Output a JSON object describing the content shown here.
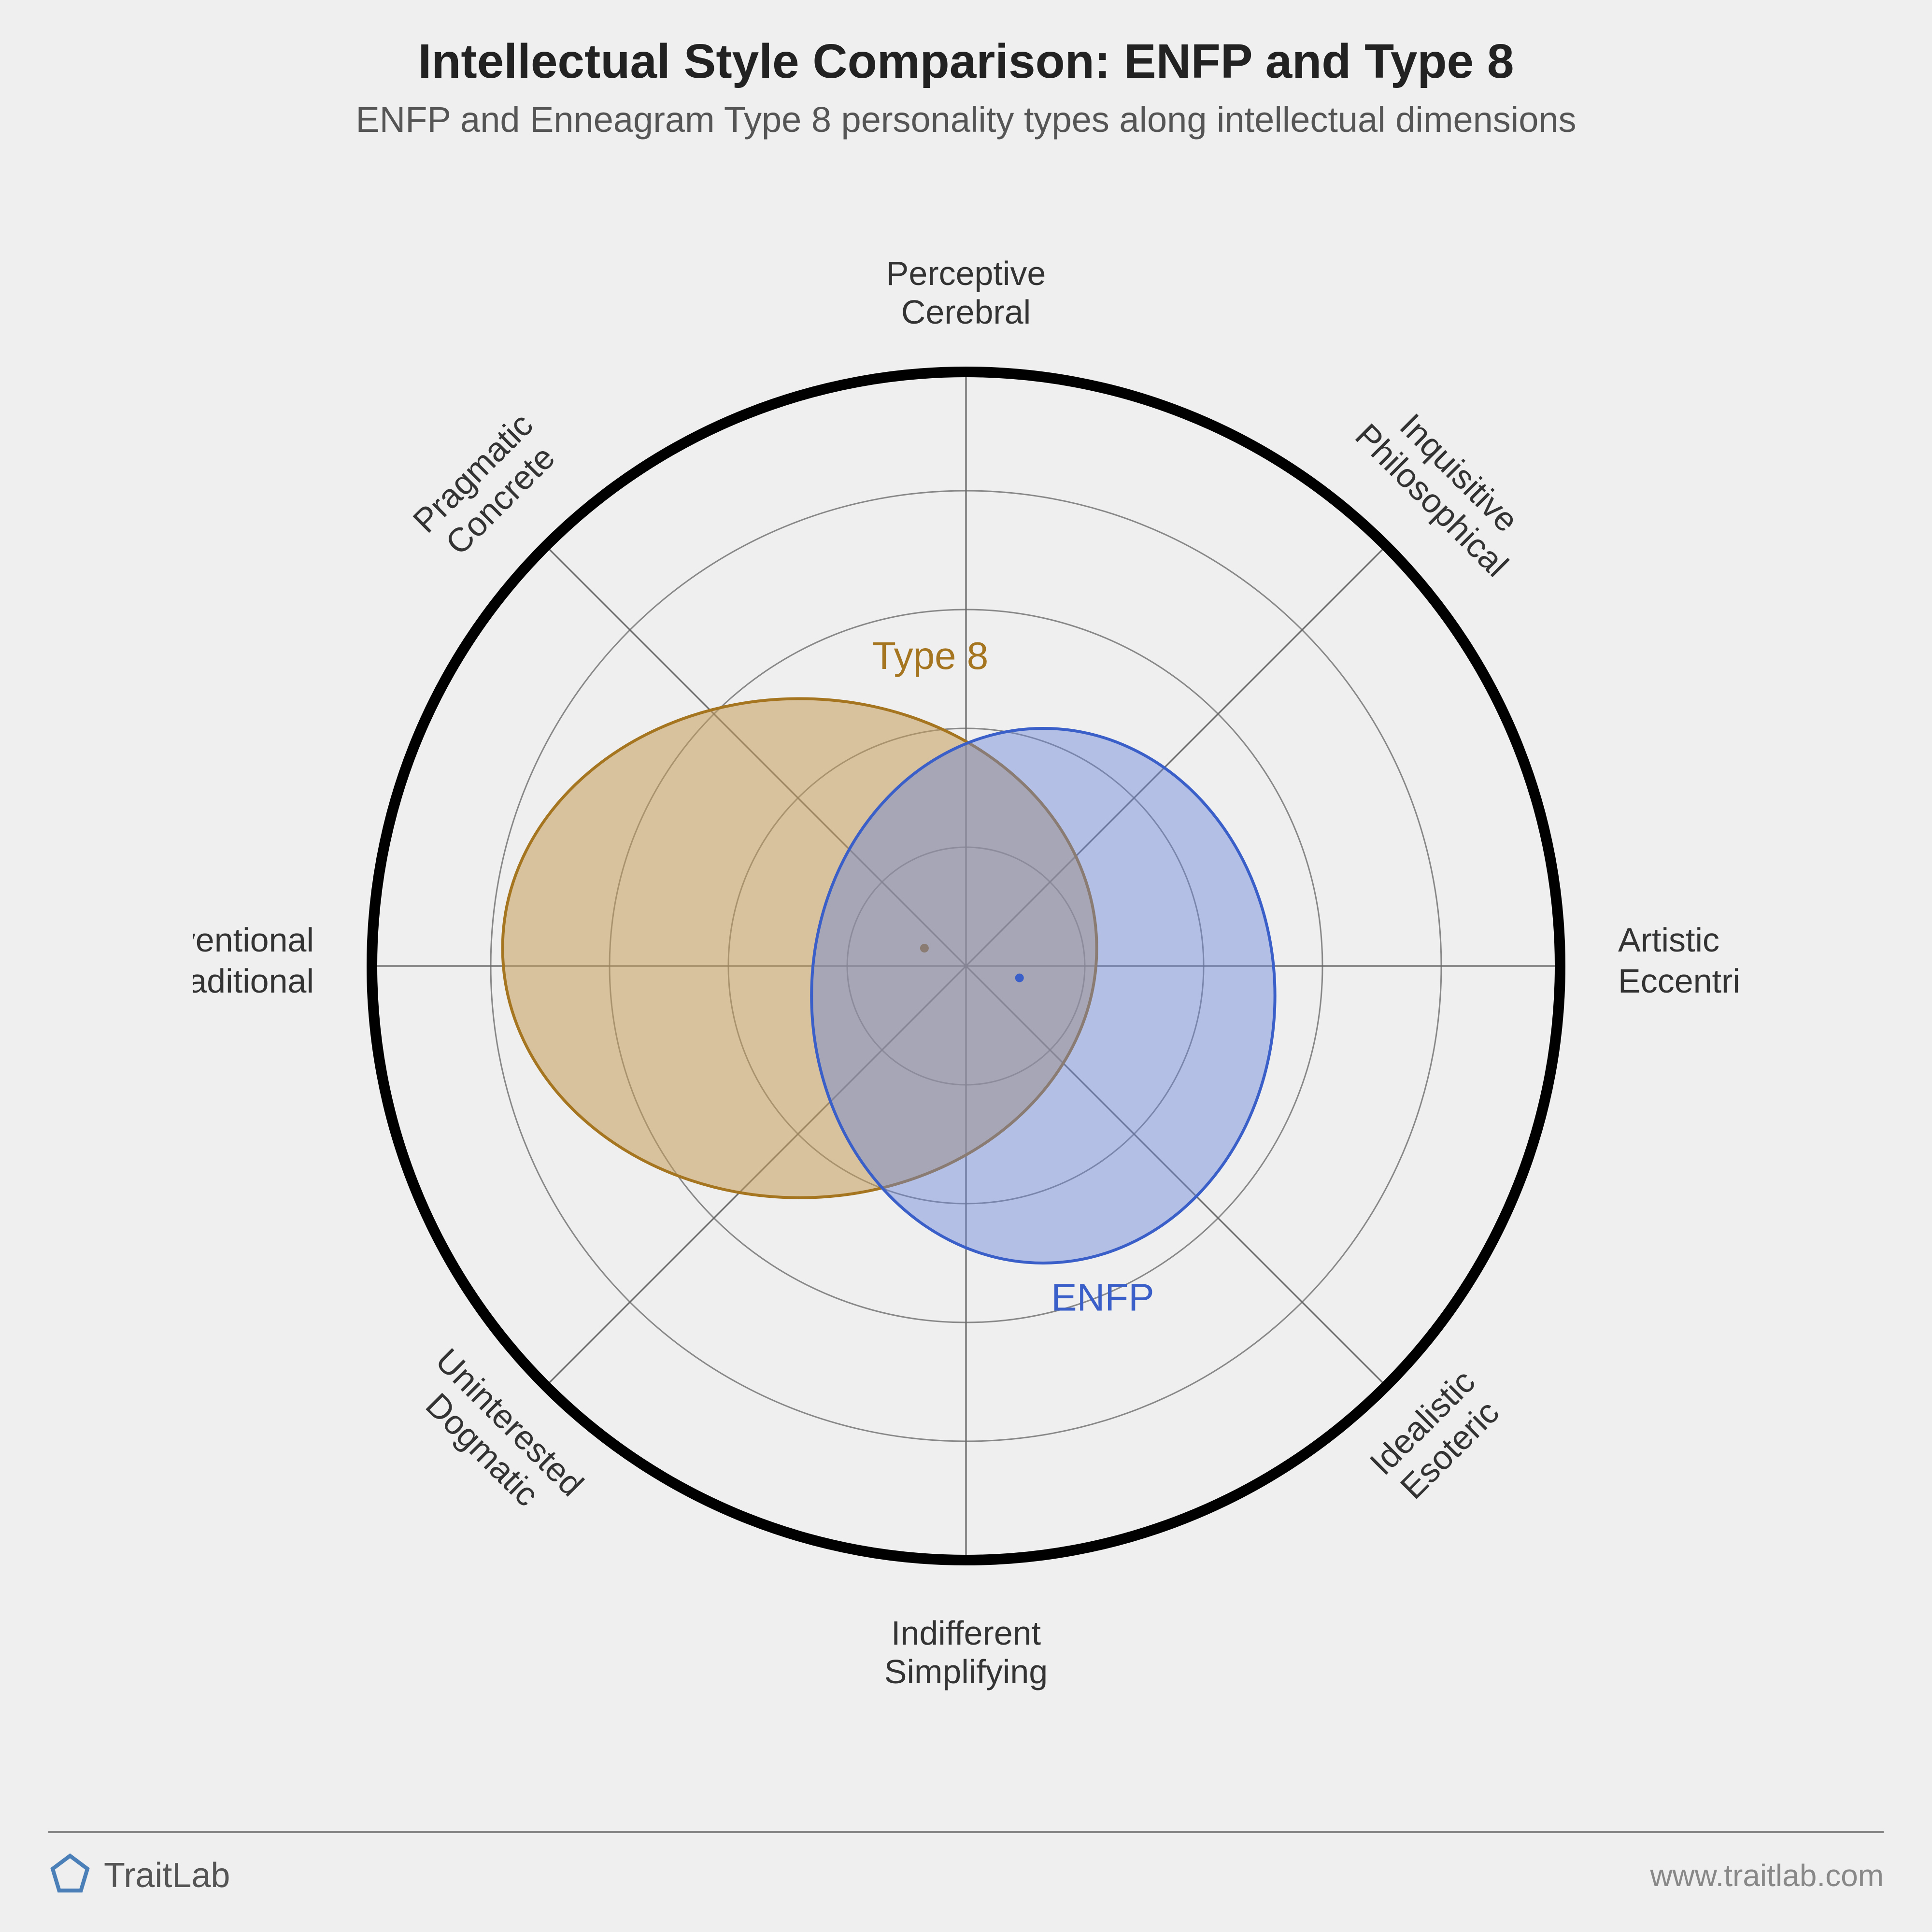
{
  "title": "Intellectual Style Comparison: ENFP and Type 8",
  "subtitle": "ENFP and Enneagram Type 8 personality types along intellectual dimensions",
  "chart": {
    "type": "radar-polar",
    "background_color": "#efefef",
    "outer_ring_color": "#000000",
    "outer_ring_width": 22,
    "grid_ring_color": "#888888",
    "grid_ring_width": 3,
    "grid_rings": [
      0.2,
      0.4,
      0.6,
      0.8,
      1.0
    ],
    "spoke_color": "#666666",
    "spoke_width": 3,
    "axes_count": 8,
    "axis_labels": [
      {
        "line1": "Perceptive",
        "line2": "Cerebral",
        "angle_deg": 90
      },
      {
        "line1": "Inquisitive",
        "line2": "Philosophical",
        "angle_deg": 45
      },
      {
        "line1": "Artistic",
        "line2": "Eccentric",
        "angle_deg": 0
      },
      {
        "line1": "Idealistic",
        "line2": "Esoteric",
        "angle_deg": -45
      },
      {
        "line1": "Indifferent",
        "line2": "Simplifying",
        "angle_deg": -90
      },
      {
        "line1": "Uninterested",
        "line2": "Dogmatic",
        "angle_deg": -135
      },
      {
        "line1": "Conventional",
        "line2": "Traditional",
        "angle_deg": 180
      },
      {
        "line1": "Pragmatic",
        "line2": "Concrete",
        "angle_deg": 135
      }
    ],
    "axis_label_fontsize": 70,
    "axis_label_color": "#333333",
    "series": [
      {
        "name": "Type 8",
        "label": "Type 8",
        "stroke_color": "#a57520",
        "fill_color": "#c49a5a",
        "fill_opacity": 0.55,
        "stroke_width": 6,
        "label_color": "#a57520",
        "center_offset": {
          "x": -0.28,
          "y": 0.03
        },
        "radius_x": 0.5,
        "radius_y": 0.42,
        "dot": {
          "x": -0.07,
          "y": 0.03
        }
      },
      {
        "name": "ENFP",
        "label": "ENFP",
        "stroke_color": "#3a5fc8",
        "fill_color": "#6a86d8",
        "fill_opacity": 0.45,
        "stroke_width": 6,
        "label_color": "#3a5fc8",
        "center_offset": {
          "x": 0.13,
          "y": -0.05
        },
        "radius_x": 0.39,
        "radius_y": 0.45,
        "dot": {
          "x": 0.09,
          "y": -0.02
        }
      }
    ]
  },
  "footer": {
    "brand": "TraitLab",
    "brand_logo_color": "#4a7fb8",
    "url": "www.traitlab.com",
    "url_color": "#888888",
    "rule_color": "#888888"
  }
}
